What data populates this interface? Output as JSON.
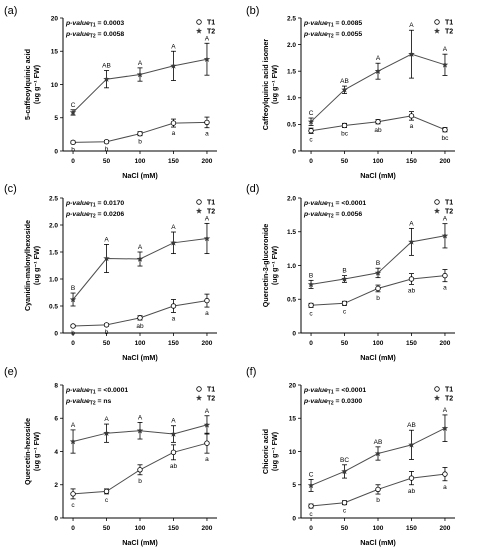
{
  "chart_data": [
    {
      "type": "line",
      "panel_label": "(a)",
      "ylabel": "5-caffeoylquinic acid",
      "yunit": "(ug g⁻¹ FW)",
      "xlabel": "NaCl (mM)",
      "x": [
        0,
        50,
        100,
        150,
        200
      ],
      "ylim": [
        0,
        20
      ],
      "yticks": [
        "0",
        "5",
        "10",
        "15",
        "20"
      ],
      "pvalues": [
        "p-valueₜ₁ = 0.0003",
        "p-valueₜ₂ = 0.0058"
      ],
      "series": [
        {
          "name": "T1",
          "values": [
            1.3,
            1.4,
            2.6,
            4.2,
            4.3
          ],
          "errors": [
            0.2,
            0.2,
            0.3,
            0.6,
            0.8
          ],
          "letters": [
            "b",
            "b",
            "b",
            "a",
            "a"
          ]
        },
        {
          "name": "T2",
          "values": [
            5.8,
            10.8,
            11.5,
            12.8,
            13.8
          ],
          "errors": [
            0.4,
            1.3,
            1.0,
            2.2,
            2.4
          ],
          "letters": [
            "C",
            "AB",
            "A",
            "A",
            "A"
          ]
        }
      ]
    },
    {
      "type": "line",
      "panel_label": "(b)",
      "ylabel": "Caffeoylquinic acid isomer",
      "yunit": "(ug g⁻¹ FW)",
      "xlabel": "NaCl (mM)",
      "x": [
        0,
        50,
        100,
        150,
        200
      ],
      "ylim": [
        0,
        2.5
      ],
      "yticks": [
        "0",
        "0.5",
        "1.0",
        "1.5",
        "2.0",
        "2.5"
      ],
      "pvalues": [
        "p-valueₜ₁ = 0.0085",
        "p-valueₜ₂ = 0.0055"
      ],
      "series": [
        {
          "name": "T1",
          "values": [
            0.38,
            0.48,
            0.55,
            0.66,
            0.4
          ],
          "errors": [
            0.05,
            0.04,
            0.04,
            0.08,
            0.04
          ],
          "letters": [
            "c",
            "bc",
            "ab",
            "a",
            "bc"
          ]
        },
        {
          "name": "T2",
          "values": [
            0.55,
            1.15,
            1.5,
            1.82,
            1.62
          ],
          "errors": [
            0.07,
            0.07,
            0.15,
            0.45,
            0.2
          ],
          "letters": [
            "C",
            "AB",
            "A",
            "A",
            "A"
          ]
        }
      ]
    },
    {
      "type": "line",
      "panel_label": "(c)",
      "ylabel": "Cyanidin-malonylhexoside",
      "yunit": "(ug g⁻¹ FW)",
      "xlabel": "NaCl (mM)",
      "x": [
        0,
        50,
        100,
        150,
        200
      ],
      "ylim": [
        0,
        2.5
      ],
      "yticks": [
        "0",
        "0.5",
        "1.0",
        "1.5",
        "2.0",
        "2.5"
      ],
      "pvalues": [
        "p-valueₜ₁ = 0.0170",
        "p-valueₜ₂ = 0.0206"
      ],
      "series": [
        {
          "name": "T1",
          "values": [
            0.13,
            0.15,
            0.28,
            0.5,
            0.6
          ],
          "errors": [
            0.02,
            0.02,
            0.04,
            0.12,
            0.12
          ],
          "letters": [
            "b",
            "b",
            "ab",
            "a",
            "a"
          ]
        },
        {
          "name": "T2",
          "values": [
            0.62,
            1.38,
            1.37,
            1.67,
            1.75
          ],
          "errors": [
            0.12,
            0.26,
            0.13,
            0.2,
            0.28
          ],
          "letters": [
            "B",
            "A",
            "A",
            "A",
            "A"
          ]
        }
      ]
    },
    {
      "type": "line",
      "panel_label": "(d)",
      "ylabel": "Quercetin-3-glucoronide",
      "yunit": "(ug g⁻¹ FW)",
      "xlabel": "NaCl (mM)",
      "x": [
        0,
        50,
        100,
        150,
        200
      ],
      "ylim": [
        0,
        2.0
      ],
      "yticks": [
        "0",
        "0.5",
        "1.0",
        "1.5",
        "2.0"
      ],
      "pvalues": [
        "p-valueₜ₁ = <0.0001",
        "p-valueₜ₂ = 0.0056"
      ],
      "series": [
        {
          "name": "T1",
          "values": [
            0.41,
            0.44,
            0.66,
            0.8,
            0.85
          ],
          "errors": [
            0.03,
            0.03,
            0.05,
            0.08,
            0.09
          ],
          "letters": [
            "c",
            "c",
            "b",
            "ab",
            "a"
          ]
        },
        {
          "name": "T2",
          "values": [
            0.72,
            0.8,
            0.89,
            1.35,
            1.44
          ],
          "errors": [
            0.06,
            0.05,
            0.07,
            0.2,
            0.18
          ],
          "letters": [
            "B",
            "B",
            "B",
            "A",
            "A"
          ]
        }
      ]
    },
    {
      "type": "line",
      "panel_label": "(e)",
      "ylabel": "Quercetin-hexoside",
      "yunit": "(ug g⁻¹ FW)",
      "xlabel": "NaCl (mM)",
      "x": [
        0,
        50,
        100,
        150,
        200
      ],
      "ylim": [
        0,
        8
      ],
      "yticks": [
        "0",
        "2",
        "4",
        "6",
        "8"
      ],
      "pvalues": [
        "p-valueₜ₁ = <0.0001",
        "p-valueₜ₂ = ns"
      ],
      "series": [
        {
          "name": "T1",
          "values": [
            1.45,
            1.6,
            2.9,
            3.95,
            4.5
          ],
          "errors": [
            0.3,
            0.15,
            0.3,
            0.45,
            0.6
          ],
          "letters": [
            "c",
            "c",
            "b",
            "ab",
            "a"
          ]
        },
        {
          "name": "T2",
          "values": [
            4.6,
            5.1,
            5.25,
            5.05,
            5.6
          ],
          "errors": [
            0.7,
            0.55,
            0.5,
            0.5,
            0.55
          ],
          "letters": [
            "A",
            "A",
            "A",
            "A",
            "A"
          ]
        }
      ]
    },
    {
      "type": "line",
      "panel_label": "(f)",
      "ylabel": "Chicoric acid",
      "yunit": "(ug g⁻¹ FW)",
      "xlabel": "NaCl (mM)",
      "x": [
        0,
        50,
        100,
        150,
        200
      ],
      "ylim": [
        0,
        20
      ],
      "yticks": [
        "0",
        "5",
        "10",
        "15",
        "20"
      ],
      "pvalues": [
        "p-valueₜ₁ = <0.0001",
        "p-valueₜ₂ = 0.0300"
      ],
      "series": [
        {
          "name": "T1",
          "values": [
            1.8,
            2.3,
            4.3,
            6.0,
            6.6
          ],
          "errors": [
            0.3,
            0.3,
            0.7,
            1.0,
            1.0
          ],
          "letters": [
            "c",
            "c",
            "b",
            "ab",
            "a"
          ]
        },
        {
          "name": "T2",
          "values": [
            4.9,
            7.0,
            9.7,
            11.0,
            13.5
          ],
          "errors": [
            0.9,
            1.0,
            1.0,
            2.2,
            2.0
          ],
          "letters": [
            "C",
            "BC",
            "AB",
            "AB",
            "A"
          ]
        }
      ]
    }
  ],
  "legend": {
    "t1": "T1",
    "t2": "T2"
  },
  "colors": {
    "axis": "#000000",
    "line": "#4d4d4d",
    "t2_marker": "#3a3a3a",
    "t1_marker_fill": "#ffffff"
  }
}
